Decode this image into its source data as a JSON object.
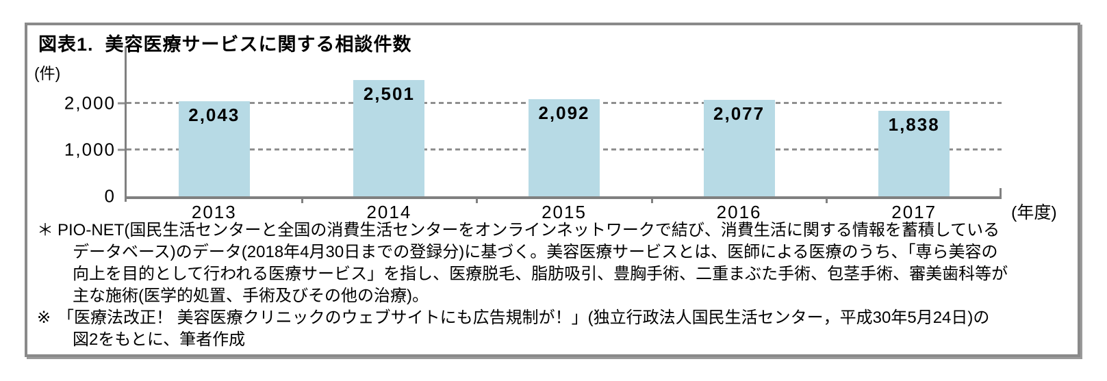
{
  "chart_data": {
    "type": "bar",
    "title": "図表1.  美容医療サービスに関する相談件数",
    "ylabel": "(件)",
    "xlabel": "(年度)",
    "categories": [
      "2013",
      "2014",
      "2015",
      "2016",
      "2017"
    ],
    "values": [
      2043,
      2501,
      2092,
      2077,
      1838
    ],
    "value_labels": [
      "2,043",
      "2,501",
      "2,092",
      "2,077",
      "1,838"
    ],
    "ylim": [
      0,
      2600
    ],
    "yticks": [
      0,
      1000,
      2000
    ],
    "ytick_labels": [
      "0",
      "1,000",
      "2,000"
    ],
    "grid": "horizontal-dashed",
    "legend": "none",
    "bar_color": "#b7dae5",
    "axis_color": "#808080"
  },
  "footnotes": {
    "lines": [
      {
        "marker": "＊",
        "indent": 0,
        "text": "PIO-NET(国民生活センターと全国の消費生活センターをオンラインネットワークで結び、消費生活に関する情報を蓄積している"
      },
      {
        "marker": "",
        "indent": 1,
        "text": "データベース)のデータ(2018年4月30日までの登録分)に基づく。美容医療サービスとは、医師による医療のうち、「専ら美容の"
      },
      {
        "marker": "",
        "indent": 1,
        "text": "向上を目的として行われる医療サービス」を指し、医療脱毛、脂肪吸引、豊胸手術、二重まぶた手術、包茎手術、審美歯科等が"
      },
      {
        "marker": "",
        "indent": 1,
        "text": "主な施術(医学的処置、手術及びその他の治療)。"
      },
      {
        "marker": "※",
        "indent": 0,
        "text": "「医療法改正！ 美容医療クリニックのウェブサイトにも広告規制が！」(独立行政法人国民生活センター，平成30年5月24日)の"
      },
      {
        "marker": "",
        "indent": 1,
        "text": "図2をもとに、筆者作成"
      }
    ]
  }
}
